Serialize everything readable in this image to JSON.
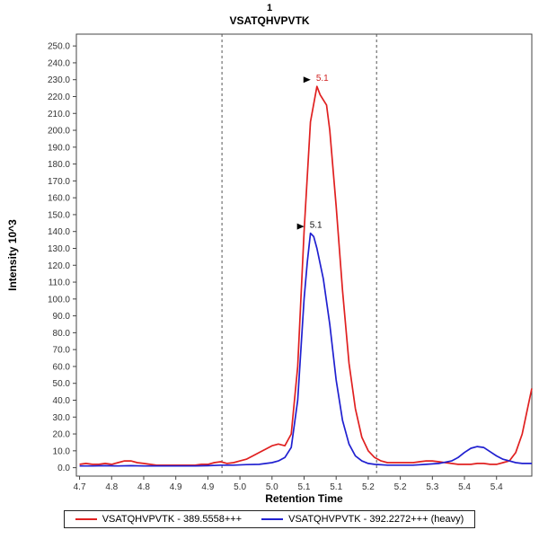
{
  "chart_data": {
    "type": "line",
    "title_line1": "1",
    "title_line2": "VSATQHVPVTK",
    "xlabel": "Retention Time",
    "ylabel": "Intensity 10^3",
    "x_range": [
      4.695,
      5.405
    ],
    "y_range": [
      -5,
      257
    ],
    "grid": false,
    "x_ticks": [
      {
        "v": 4.7,
        "label": "4.7"
      },
      {
        "v": 4.75,
        "label": "4.8"
      },
      {
        "v": 4.8,
        "label": "4.8"
      },
      {
        "v": 4.85,
        "label": "4.9"
      },
      {
        "v": 4.9,
        "label": "4.9"
      },
      {
        "v": 4.95,
        "label": "5.0"
      },
      {
        "v": 5.0,
        "label": "5.0"
      },
      {
        "v": 5.05,
        "label": "5.1"
      },
      {
        "v": 5.1,
        "label": "5.1"
      },
      {
        "v": 5.15,
        "label": "5.2"
      },
      {
        "v": 5.2,
        "label": "5.2"
      },
      {
        "v": 5.25,
        "label": "5.3"
      },
      {
        "v": 5.3,
        "label": "5.4"
      },
      {
        "v": 5.35,
        "label": "5.4"
      }
    ],
    "y_ticks": [
      {
        "v": 0,
        "label": "0.0"
      },
      {
        "v": 10,
        "label": "10.0"
      },
      {
        "v": 20,
        "label": "20.0"
      },
      {
        "v": 30,
        "label": "30.0"
      },
      {
        "v": 40,
        "label": "40.0"
      },
      {
        "v": 50,
        "label": "50.0"
      },
      {
        "v": 60,
        "label": "60.0"
      },
      {
        "v": 70,
        "label": "70.0"
      },
      {
        "v": 80,
        "label": "80.0"
      },
      {
        "v": 90,
        "label": "90.0"
      },
      {
        "v": 100,
        "label": "100.0"
      },
      {
        "v": 110,
        "label": "110.0"
      },
      {
        "v": 120,
        "label": "120.0"
      },
      {
        "v": 130,
        "label": "130.0"
      },
      {
        "v": 140,
        "label": "140.0"
      },
      {
        "v": 150,
        "label": "150.0"
      },
      {
        "v": 160,
        "label": "160.0"
      },
      {
        "v": 170,
        "label": "170.0"
      },
      {
        "v": 180,
        "label": "180.0"
      },
      {
        "v": 190,
        "label": "190.0"
      },
      {
        "v": 200,
        "label": "200.0"
      },
      {
        "v": 210,
        "label": "210.0"
      },
      {
        "v": 220,
        "label": "220.0"
      },
      {
        "v": 230,
        "label": "230.0"
      },
      {
        "v": 240,
        "label": "240.0"
      },
      {
        "v": 250,
        "label": "250.0"
      }
    ],
    "integration_boundaries": [
      4.922,
      5.163
    ],
    "annotations": [
      {
        "x": 5.07,
        "y": 226,
        "label": "5.1",
        "color": "#d02020"
      },
      {
        "x": 5.06,
        "y": 139,
        "label": "5.1",
        "color": "#111111"
      }
    ],
    "series": [
      {
        "name": "VSATQHVPVTK - 389.5558+++",
        "color": "#e02020",
        "points": [
          [
            4.7,
            2
          ],
          [
            4.71,
            2.5
          ],
          [
            4.72,
            2
          ],
          [
            4.73,
            2
          ],
          [
            4.74,
            2.5
          ],
          [
            4.75,
            2
          ],
          [
            4.76,
            3
          ],
          [
            4.77,
            4
          ],
          [
            4.78,
            4
          ],
          [
            4.79,
            3
          ],
          [
            4.8,
            2.5
          ],
          [
            4.81,
            2
          ],
          [
            4.82,
            1.5
          ],
          [
            4.83,
            1.5
          ],
          [
            4.84,
            1.5
          ],
          [
            4.85,
            1.5
          ],
          [
            4.86,
            1.5
          ],
          [
            4.87,
            1.5
          ],
          [
            4.88,
            1.5
          ],
          [
            4.89,
            2
          ],
          [
            4.9,
            2
          ],
          [
            4.91,
            3
          ],
          [
            4.92,
            3.5
          ],
          [
            4.93,
            2.5
          ],
          [
            4.94,
            3
          ],
          [
            4.95,
            4
          ],
          [
            4.96,
            5
          ],
          [
            4.97,
            7
          ],
          [
            4.98,
            9
          ],
          [
            4.99,
            11
          ],
          [
            5.0,
            13
          ],
          [
            5.01,
            14
          ],
          [
            5.02,
            13
          ],
          [
            5.03,
            20
          ],
          [
            5.04,
            60
          ],
          [
            5.05,
            140
          ],
          [
            5.06,
            205
          ],
          [
            5.07,
            226
          ],
          [
            5.075,
            221
          ],
          [
            5.08,
            218
          ],
          [
            5.085,
            215
          ],
          [
            5.09,
            200
          ],
          [
            5.1,
            155
          ],
          [
            5.11,
            105
          ],
          [
            5.12,
            62
          ],
          [
            5.13,
            35
          ],
          [
            5.14,
            18
          ],
          [
            5.15,
            10
          ],
          [
            5.16,
            6
          ],
          [
            5.17,
            4
          ],
          [
            5.18,
            3
          ],
          [
            5.19,
            3
          ],
          [
            5.2,
            3
          ],
          [
            5.21,
            3
          ],
          [
            5.22,
            3
          ],
          [
            5.23,
            3.5
          ],
          [
            5.24,
            4
          ],
          [
            5.25,
            4
          ],
          [
            5.26,
            3.5
          ],
          [
            5.27,
            3
          ],
          [
            5.28,
            2.5
          ],
          [
            5.29,
            2
          ],
          [
            5.3,
            2
          ],
          [
            5.31,
            2
          ],
          [
            5.32,
            2.5
          ],
          [
            5.33,
            2.5
          ],
          [
            5.34,
            2
          ],
          [
            5.35,
            2
          ],
          [
            5.36,
            3
          ],
          [
            5.37,
            4
          ],
          [
            5.38,
            9
          ],
          [
            5.39,
            20
          ],
          [
            5.4,
            38
          ],
          [
            5.405,
            47
          ]
        ]
      },
      {
        "name": "VSATQHVPVTK - 392.2272+++ (heavy)",
        "color": "#2020d0",
        "points": [
          [
            4.7,
            1
          ],
          [
            4.72,
            1
          ],
          [
            4.74,
            1.2
          ],
          [
            4.76,
            1
          ],
          [
            4.78,
            1.2
          ],
          [
            4.8,
            1
          ],
          [
            4.82,
            1
          ],
          [
            4.84,
            1
          ],
          [
            4.86,
            1
          ],
          [
            4.88,
            1
          ],
          [
            4.9,
            1.2
          ],
          [
            4.92,
            1.5
          ],
          [
            4.94,
            1.5
          ],
          [
            4.96,
            1.8
          ],
          [
            4.98,
            2
          ],
          [
            5.0,
            3
          ],
          [
            5.01,
            4
          ],
          [
            5.02,
            6
          ],
          [
            5.03,
            12
          ],
          [
            5.04,
            40
          ],
          [
            5.05,
            100
          ],
          [
            5.055,
            122
          ],
          [
            5.06,
            139
          ],
          [
            5.065,
            137
          ],
          [
            5.07,
            130
          ],
          [
            5.08,
            112
          ],
          [
            5.09,
            85
          ],
          [
            5.1,
            52
          ],
          [
            5.11,
            28
          ],
          [
            5.12,
            14
          ],
          [
            5.13,
            7
          ],
          [
            5.14,
            4
          ],
          [
            5.15,
            2.5
          ],
          [
            5.16,
            2
          ],
          [
            5.18,
            1.5
          ],
          [
            5.2,
            1.5
          ],
          [
            5.22,
            1.5
          ],
          [
            5.24,
            2
          ],
          [
            5.26,
            2.5
          ],
          [
            5.28,
            4
          ],
          [
            5.29,
            6
          ],
          [
            5.3,
            9
          ],
          [
            5.31,
            11.5
          ],
          [
            5.32,
            12.5
          ],
          [
            5.33,
            12
          ],
          [
            5.34,
            9.5
          ],
          [
            5.35,
            7
          ],
          [
            5.36,
            5
          ],
          [
            5.37,
            4
          ],
          [
            5.38,
            3
          ],
          [
            5.39,
            2.5
          ],
          [
            5.4,
            2.5
          ],
          [
            5.405,
            2.5
          ]
        ]
      }
    ],
    "legend": {
      "position": "bottom",
      "items": [
        {
          "label": "VSATQHVPVTK - 389.5558+++",
          "color": "#e02020"
        },
        {
          "label": "VSATQHVPVTK - 392.2272+++ (heavy)",
          "color": "#2020d0"
        }
      ]
    }
  }
}
